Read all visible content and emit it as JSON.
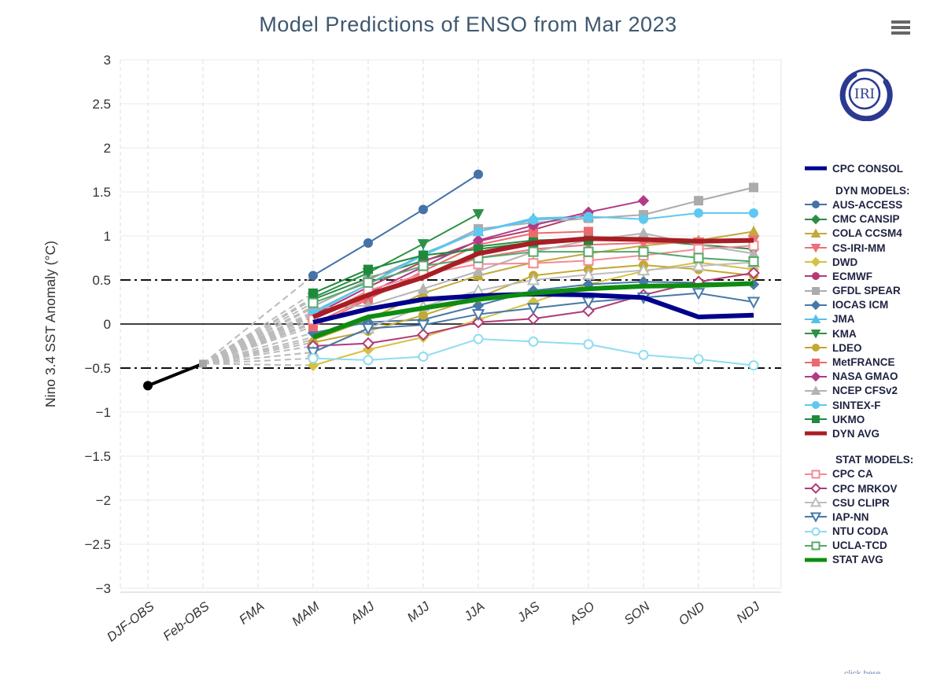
{
  "header": {
    "title": "Model Predictions of ENSO from Mar 2023"
  },
  "logo": {
    "text": "IRI",
    "color": "#2B3990"
  },
  "menu": {
    "icon": "hamburger-menu-icon"
  },
  "footer": {
    "partial_text": "click here"
  },
  "legend": {
    "dyn_header": "DYN MODELS:",
    "stat_header": "STAT MODELS:"
  },
  "chart_data": {
    "type": "line",
    "title": "Model Predictions of ENSO from Mar 2023",
    "ylabel": "Nino 3.4 SST Anomaly (°C)",
    "xlabel": "",
    "ylim": [
      -3,
      3
    ],
    "ytick_step": 0.5,
    "yticks": [
      "3",
      "2.5",
      "2",
      "1.5",
      "1",
      "0.5",
      "0",
      "−0.5",
      "−1",
      "−1.5",
      "−2",
      "−2.5",
      "−3"
    ],
    "grid": "on",
    "zero_line": 0,
    "threshold_lines": [
      0.5,
      -0.5
    ],
    "legend_position": "right",
    "categories": [
      "DJF-OBS",
      "Feb-OBS",
      "FMA",
      "MAM",
      "AMJ",
      "MJJ",
      "JJA",
      "JAS",
      "ASO",
      "SON",
      "OND",
      "NDJ"
    ],
    "forecast_start_category": "MAM",
    "observations": {
      "name": "OBS",
      "color": "#000000",
      "points": [
        {
          "category": "DJF-OBS",
          "value": -0.7
        },
        {
          "category": "Feb-OBS",
          "value": -0.45
        }
      ]
    },
    "fan": {
      "from_category": "Feb-OBS",
      "from_value": -0.45,
      "color": "#BBBBBB",
      "style": "dashed"
    },
    "series": [
      {
        "name": "CPC CONSOL",
        "group": "consol",
        "color": "#00008B",
        "width": 6,
        "marker": null,
        "open": false,
        "values": [
          0.02,
          0.17,
          0.28,
          0.32,
          0.34,
          0.33,
          0.3,
          0.08,
          0.1
        ]
      },
      {
        "name": "AUS-ACCESS",
        "group": "dyn",
        "color": "#4572A7",
        "width": 2,
        "marker": "circle",
        "open": false,
        "values": [
          0.55,
          0.92,
          1.3,
          1.7,
          null,
          null,
          null,
          null,
          null
        ]
      },
      {
        "name": "CMC CANSIP",
        "group": "dyn",
        "color": "#2E8B46",
        "width": 2,
        "marker": "diamond",
        "open": false,
        "values": [
          0.28,
          0.52,
          0.72,
          0.88,
          0.95,
          0.97,
          0.95,
          0.9,
          0.85
        ]
      },
      {
        "name": "COLA CCSM4",
        "group": "dyn",
        "color": "#C2A93C",
        "width": 2,
        "marker": "tri-up",
        "open": false,
        "values": [
          -0.18,
          0.05,
          0.35,
          0.55,
          0.7,
          0.8,
          0.89,
          0.95,
          1.05
        ]
      },
      {
        "name": "CS-IRI-MM",
        "group": "dyn",
        "color": "#EE7079",
        "width": 2,
        "marker": "tri-down",
        "open": false,
        "values": [
          0.0,
          0.3,
          0.55,
          0.75,
          0.85,
          0.9,
          0.92,
          0.93,
          0.95
        ]
      },
      {
        "name": "DWD",
        "group": "dyn",
        "color": "#D6C142",
        "width": 2,
        "marker": "diamond",
        "open": false,
        "values": [
          -0.47,
          -0.29,
          -0.15,
          0.05,
          0.25,
          0.45,
          0.6,
          0.7,
          0.62
        ]
      },
      {
        "name": "ECMWF",
        "group": "dyn",
        "color": "#B53A70",
        "width": 2,
        "marker": "circle",
        "open": false,
        "values": [
          0.1,
          0.42,
          0.71,
          0.94,
          1.07,
          1.25,
          null,
          null,
          null
        ]
      },
      {
        "name": "GFDL SPEAR",
        "group": "dyn",
        "color": "#ABABAB",
        "width": 2,
        "marker": "square",
        "open": false,
        "values": [
          0.2,
          0.5,
          0.78,
          1.08,
          1.15,
          1.2,
          1.24,
          1.4,
          1.55
        ]
      },
      {
        "name": "IOCAS ICM",
        "group": "dyn",
        "color": "#4878A8",
        "width": 2,
        "marker": "diamond",
        "open": false,
        "values": [
          -0.1,
          0.02,
          0.05,
          0.21,
          0.38,
          0.45,
          0.48,
          0.47,
          0.45
        ]
      },
      {
        "name": "JMA",
        "group": "dyn",
        "color": "#57C0E8",
        "width": 2,
        "marker": "tri-up",
        "open": false,
        "values": [
          0.14,
          0.45,
          0.8,
          1.05,
          1.2,
          1.22,
          null,
          null,
          null
        ]
      },
      {
        "name": "KMA",
        "group": "dyn",
        "color": "#2E9148",
        "width": 2,
        "marker": "tri-down",
        "open": false,
        "values": [
          0.3,
          0.58,
          0.91,
          1.25,
          null,
          null,
          null,
          null,
          null
        ]
      },
      {
        "name": "LDEO",
        "group": "dyn",
        "color": "#C3A832",
        "width": 2,
        "marker": "circle",
        "open": false,
        "values": [
          -0.21,
          -0.08,
          0.1,
          0.3,
          0.55,
          0.62,
          0.67,
          0.62,
          0.55
        ]
      },
      {
        "name": "MetFRANCE",
        "group": "dyn",
        "color": "#EC6A6E",
        "width": 2,
        "marker": "square",
        "open": false,
        "values": [
          -0.03,
          0.28,
          0.6,
          0.9,
          1.03,
          1.05,
          null,
          null,
          null
        ]
      },
      {
        "name": "NASA GMAO",
        "group": "dyn",
        "color": "#B23A87",
        "width": 2,
        "marker": "diamond",
        "open": false,
        "values": [
          0.05,
          0.35,
          0.65,
          0.95,
          1.12,
          1.27,
          1.4,
          null,
          null
        ]
      },
      {
        "name": "NCEP CFSv2",
        "group": "dyn",
        "color": "#B3B3B3",
        "width": 2,
        "marker": "tri-up",
        "open": false,
        "values": [
          0.18,
          0.21,
          0.4,
          0.6,
          0.82,
          0.95,
          1.03,
          0.9,
          0.8
        ]
      },
      {
        "name": "SINTEX-F",
        "group": "dyn",
        "color": "#5FC8F0",
        "width": 2,
        "marker": "circle",
        "open": false,
        "values": [
          0.12,
          0.45,
          0.78,
          1.05,
          1.18,
          1.22,
          1.19,
          1.26,
          1.26
        ]
      },
      {
        "name": "UKMO",
        "group": "dyn",
        "color": "#1F8A3C",
        "width": 2,
        "marker": "square",
        "open": false,
        "values": [
          0.35,
          0.62,
          0.78,
          0.85,
          0.93,
          0.95,
          null,
          null,
          null
        ]
      },
      {
        "name": "DYN AVG",
        "group": "dyn_avg",
        "color": "#A81E24",
        "width": 6,
        "marker": null,
        "open": false,
        "values": [
          0.08,
          0.33,
          0.53,
          0.8,
          0.92,
          0.97,
          0.96,
          0.94,
          0.95
        ]
      },
      {
        "name": "CPC CA",
        "group": "stat",
        "color": "#F28B95",
        "width": 2,
        "marker": "square",
        "open": true,
        "values": [
          0.05,
          0.38,
          0.57,
          0.68,
          0.69,
          0.72,
          0.78,
          0.85,
          0.89
        ]
      },
      {
        "name": "CPC MRKOV",
        "group": "stat",
        "color": "#B03A77",
        "width": 2,
        "marker": "diamond",
        "open": true,
        "values": [
          -0.25,
          -0.22,
          -0.12,
          0.02,
          0.06,
          0.15,
          0.33,
          0.48,
          0.58
        ]
      },
      {
        "name": "CSU CLIPR",
        "group": "stat",
        "color": "#BDBDBD",
        "width": 2,
        "marker": "tri-up",
        "open": true,
        "values": [
          -0.32,
          -0.05,
          0.2,
          0.38,
          0.5,
          0.56,
          0.61,
          0.66,
          0.7
        ]
      },
      {
        "name": "IAP-NN",
        "group": "stat",
        "color": "#4878A8",
        "width": 2,
        "marker": "tri-down",
        "open": true,
        "values": [
          -0.32,
          -0.05,
          -0.01,
          0.11,
          0.18,
          0.25,
          0.3,
          0.35,
          0.25
        ]
      },
      {
        "name": "NTU CODA",
        "group": "stat",
        "color": "#8FDCF2",
        "width": 2,
        "marker": "circle",
        "open": true,
        "values": [
          -0.39,
          -0.41,
          -0.37,
          -0.17,
          -0.2,
          -0.23,
          -0.35,
          -0.4,
          -0.47
        ]
      },
      {
        "name": "UCLA-TCD",
        "group": "stat",
        "color": "#55A86B",
        "width": 2,
        "marker": "square",
        "open": true,
        "values": [
          0.24,
          0.47,
          0.66,
          0.75,
          0.82,
          0.82,
          0.82,
          0.75,
          0.71
        ]
      },
      {
        "name": "STAT AVG",
        "group": "stat_avg",
        "color": "#0E8C10",
        "width": 6,
        "marker": null,
        "open": false,
        "values": [
          -0.15,
          0.08,
          0.18,
          0.28,
          0.35,
          0.4,
          0.43,
          0.44,
          0.46
        ]
      }
    ]
  }
}
